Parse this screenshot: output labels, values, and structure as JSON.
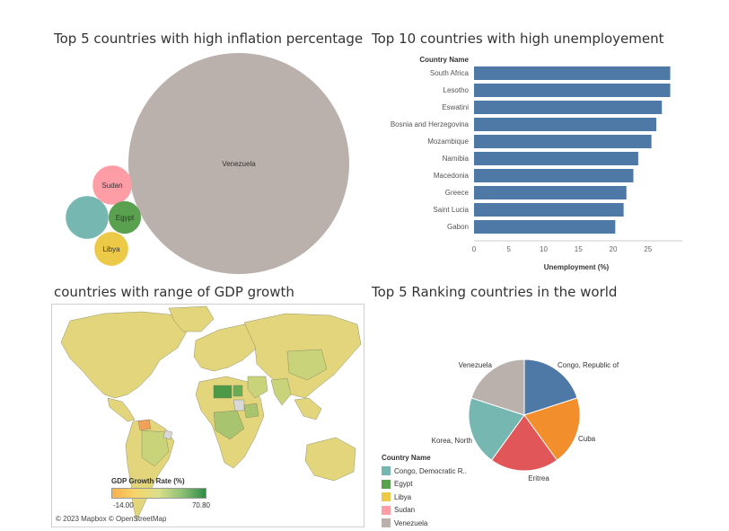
{
  "titles": {
    "inflation": "Top 5 countries with high inflation percentage",
    "unemployment": "Top 10 countries with high unemployement",
    "gdp": "countries with range of GDP growth",
    "ranking": "Top 5 Ranking countries in the world"
  },
  "chart_data": [
    {
      "type": "bubble",
      "title": "Top 5 countries with high inflation percentage",
      "bubbles": [
        {
          "label": "Venezuela",
          "value": 254.9,
          "color": "#bab0ac"
        },
        {
          "label": "",
          "value": 9.5,
          "color": "#76b7b2"
        },
        {
          "label": "Sudan",
          "value": 8.0,
          "color": "#ff9da7"
        },
        {
          "label": "Egypt",
          "value": 5.5,
          "color": "#59a14f"
        },
        {
          "label": "Libya",
          "value": 6.0,
          "color": "#edc948"
        }
      ]
    },
    {
      "type": "bar",
      "orientation": "horizontal",
      "title": "Top 10 countries with high unemployement",
      "category_header": "Country Name",
      "categories": [
        "South Africa",
        "Lesotho",
        "Eswatini",
        "Bosnia and Herzegovina",
        "Mozambique",
        "Namibia",
        "Macedonia",
        "Greece",
        "Saint Lucia",
        "Gabon"
      ],
      "values": [
        28.2,
        28.2,
        27.0,
        26.2,
        25.5,
        23.6,
        22.9,
        21.9,
        21.5,
        20.3
      ],
      "xlabel": "Unemployment (%)",
      "xticks": [
        0,
        5,
        10,
        15,
        20,
        25
      ],
      "xlim": [
        0,
        30
      ],
      "color": "#4e79a7"
    },
    {
      "type": "map",
      "title": "countries with range of GDP growth",
      "legend_title": "GDP Growth Rate (%)",
      "legend_min": "-14.00",
      "legend_max": "70.80",
      "credit": "© 2023 Mapbox © OpenStreetMap"
    },
    {
      "type": "pie",
      "title": "Top 5 Ranking countries in the world",
      "legend_title": "Country Name",
      "slices": [
        {
          "label": "Congo, Republic of",
          "value": 20,
          "color": "#4e79a7"
        },
        {
          "label": "Cuba",
          "value": 20,
          "color": "#f28e2b"
        },
        {
          "label": "Eritrea",
          "value": 20,
          "color": "#e15759"
        },
        {
          "label": "Korea, North",
          "value": 20,
          "color": "#76b7b2"
        },
        {
          "label": "Venezuela",
          "value": 20,
          "color": "#bab0ac"
        }
      ],
      "legend_items": [
        {
          "label": "Congo, Democratic R..",
          "color": "#76b7b2"
        },
        {
          "label": "Egypt",
          "color": "#59a14f"
        },
        {
          "label": "Libya",
          "color": "#edc948"
        },
        {
          "label": "Sudan",
          "color": "#ff9da7"
        },
        {
          "label": "Venezuela",
          "color": "#bab0ac"
        }
      ]
    }
  ]
}
